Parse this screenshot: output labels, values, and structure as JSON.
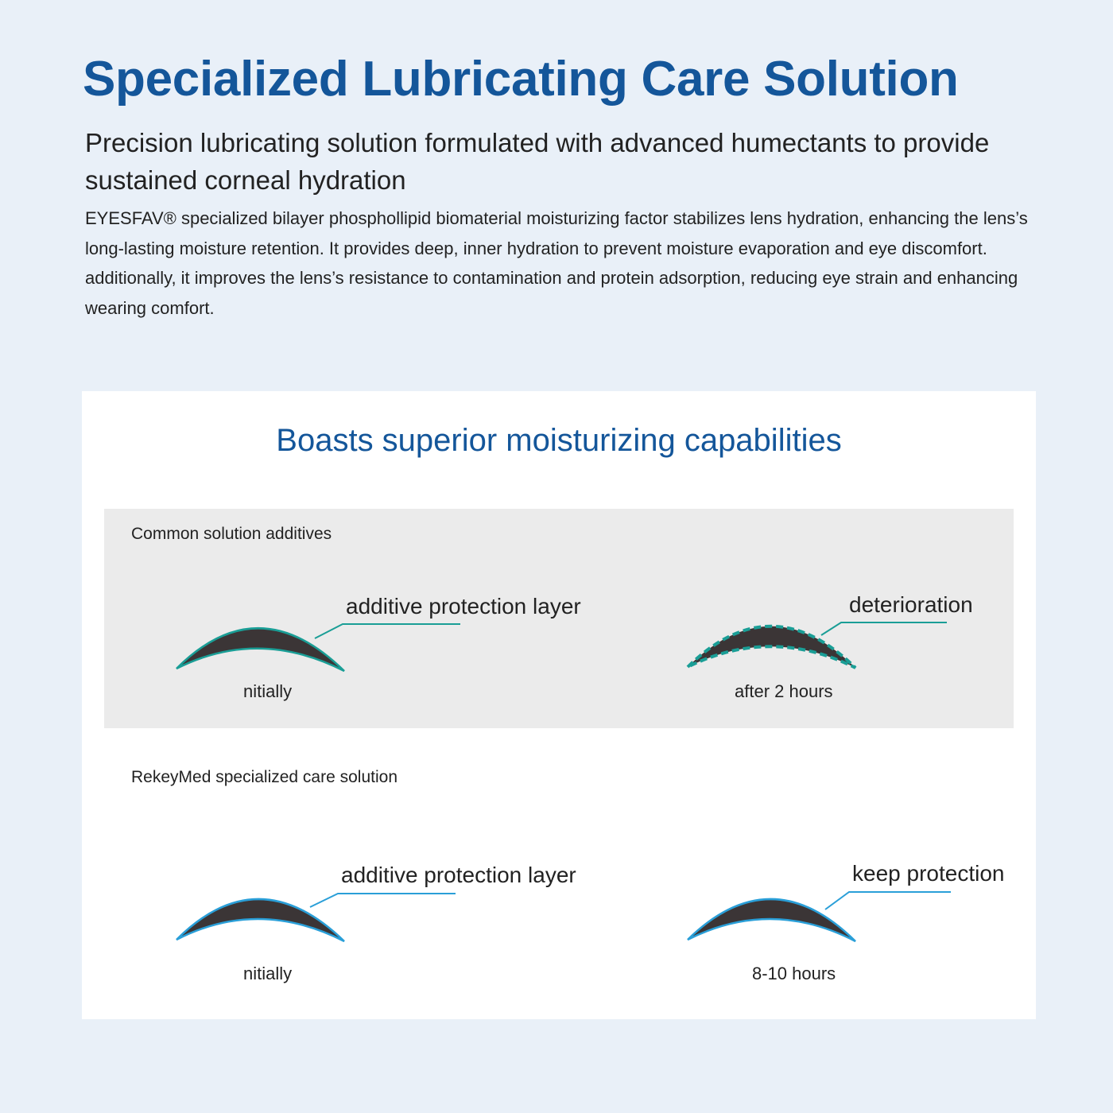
{
  "header": {
    "title": "Specialized Lubricating Care Solution",
    "subtitle": "Precision lubricating solution formulated with advanced humectants to provide sustained corneal hydration",
    "body": "EYESFAV® specialized bilayer phosphollipid biomaterial moisturizing factor stabilizes lens hydration, enhancing the lens’s long-lasting moisture retention. It provides deep, inner hydration to prevent moisture evaporation and eye discomfort. additionally, it improves the lens’s resistance to contamination and protein adsorption, reducing eye strain and enhancing wearing comfort."
  },
  "card": {
    "title": "Boasts superior moisturizing capabilities",
    "common": {
      "label": "Common solution additives",
      "left_callout": "additive protection layer",
      "left_caption": "nitially",
      "right_callout": "deterioration",
      "right_caption": "after 2 hours",
      "line_color": "#1a9e96"
    },
    "rekeymed": {
      "label": "RekeyMed specialized care solution",
      "left_callout": "additive protection layer",
      "left_caption": "nitially",
      "right_callout": "keep protection",
      "right_caption": "8-10 hours",
      "line_color": "#2a9fd8"
    },
    "lens_color": "#3b3536"
  }
}
